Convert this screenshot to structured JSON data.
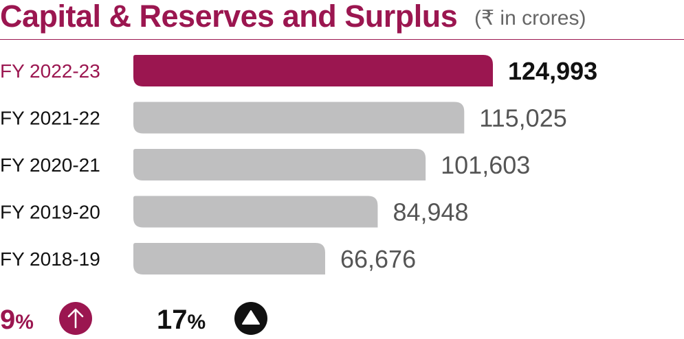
{
  "header": {
    "title": "Capital & Reserves and Surplus",
    "subtitle": "(₹ in crores)"
  },
  "chart_data": {
    "type": "bar",
    "orientation": "horizontal",
    "title": "Capital & Reserves and Surplus",
    "subtitle": "(₹ in crores)",
    "categories": [
      "FY 2022-23",
      "FY 2021-22",
      "FY 2020-21",
      "FY 2019-20",
      "FY 2018-19"
    ],
    "values": [
      124993,
      115025,
      101603,
      84948,
      66676
    ],
    "value_labels": [
      "124,993",
      "115,025",
      "101,603",
      "84,948",
      "66,676"
    ],
    "xlim": [
      0,
      124993
    ],
    "grid": false,
    "legend": "none",
    "highlight_index": 0
  },
  "footer": {
    "growth_a": {
      "value": "9",
      "symbol": "%",
      "icon": "arrow-up-circle-icon"
    },
    "growth_b": {
      "value": "17",
      "symbol": "%",
      "icon": "triangle-up-circle-icon"
    }
  },
  "colors": {
    "accent": "#9b1650",
    "bar_default": "#bfbfc0",
    "value_default": "#555555",
    "value_highlight": "#111111",
    "label_default": "#111111",
    "label_highlight": "#9b1650"
  }
}
